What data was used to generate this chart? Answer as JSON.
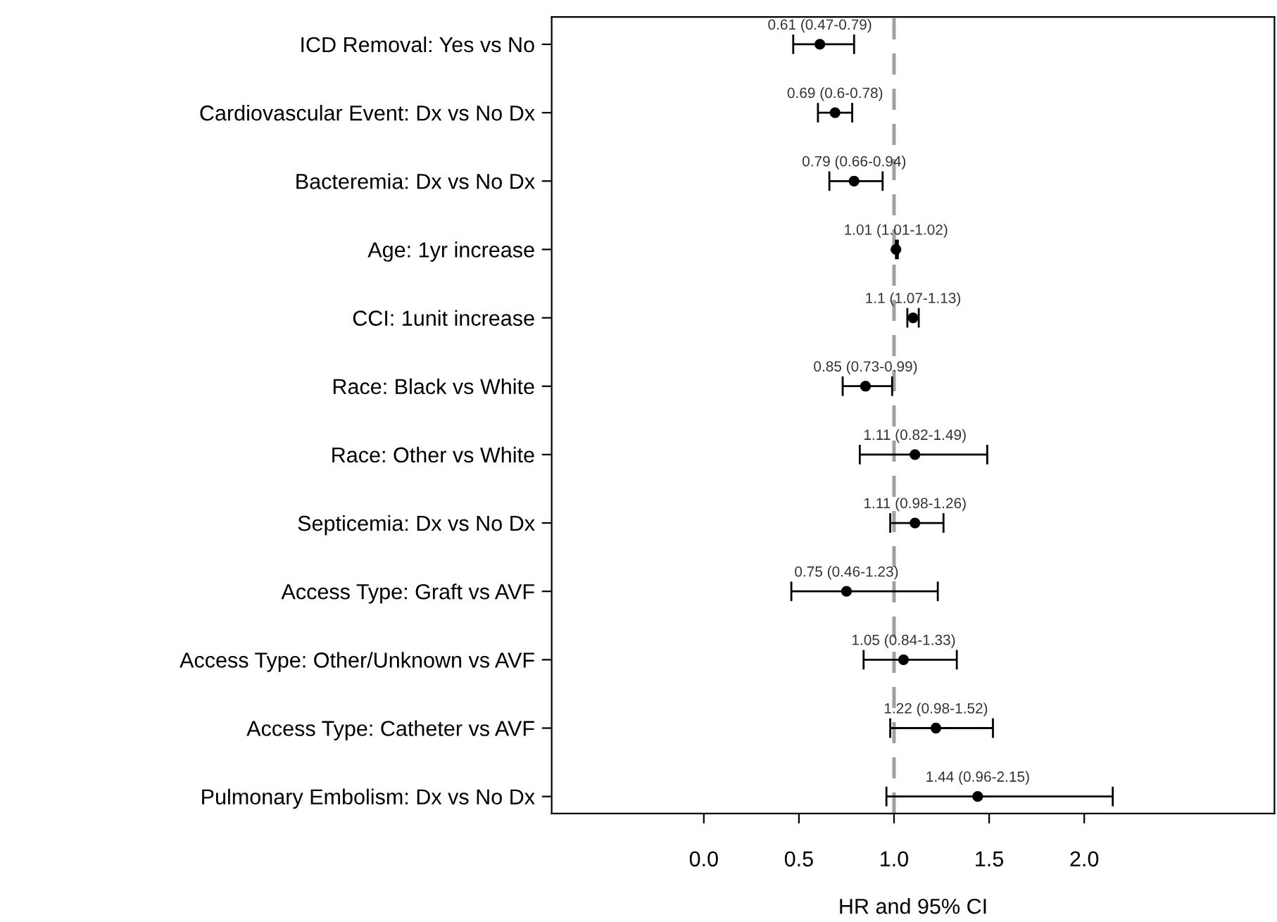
{
  "chart_data": {
    "type": "scatter",
    "orientation": "horizontal",
    "xlabel": "HR and 95% CI",
    "categories": [
      "ICD Removal: Yes vs No",
      "Cardiovascular Event: Dx vs No Dx",
      "Bacteremia: Dx vs No Dx",
      "Age: 1yr increase",
      "CCI: 1unit increase",
      "Race: Black vs White",
      "Race: Other vs White",
      "Septicemia: Dx vs No Dx",
      "Access Type: Graft vs AVF",
      "Access Type: Other/Unknown vs AVF",
      "Access Type: Catheter vs AVF",
      "Pulmonary Embolism: Dx vs No Dx"
    ],
    "series": [
      {
        "color": "#000000",
        "values": [
          0.61,
          0.69,
          0.79,
          1.01,
          1.1,
          0.85,
          1.11,
          1.11,
          0.75,
          1.05,
          1.22,
          1.44
        ],
        "errors": [
          [
            0.47,
            0.79
          ],
          [
            0.6,
            0.78
          ],
          [
            0.66,
            0.94
          ],
          [
            1.01,
            1.02
          ],
          [
            1.07,
            1.13
          ],
          [
            0.73,
            0.99
          ],
          [
            0.82,
            1.49
          ],
          [
            0.98,
            1.26
          ],
          [
            0.46,
            1.23
          ],
          [
            0.84,
            1.33
          ],
          [
            0.98,
            1.52
          ],
          [
            0.96,
            2.15
          ]
        ],
        "value_labels": [
          "0.61 (0.47-0.79)",
          "0.69 (0.6-0.78)",
          "0.79 (0.66-0.94)",
          "1.01 (1.01-1.02)",
          "1.1 (1.07-1.13)",
          "0.85 (0.73-0.99)",
          "1.11 (0.82-1.49)",
          "1.11 (0.98-1.26)",
          "0.75 (0.46-1.23)",
          "1.05 (0.84-1.33)",
          "1.22 (0.98-1.52)",
          "1.44 (0.96-2.15)"
        ]
      }
    ],
    "xlim": [
      -0.8,
      3.0
    ],
    "xticks": [
      {
        "value": 0,
        "label": "0.0"
      },
      0.5,
      {
        "value": 1,
        "label": "1.0"
      },
      1.5,
      {
        "value": 2,
        "label": "2.0"
      }
    ],
    "ref_lines": [
      {
        "axis": "x",
        "value": 1.0,
        "color": "#a0a0a0",
        "line_style": "dashed"
      }
    ],
    "marker": "circle",
    "grid": false,
    "legend": false
  }
}
